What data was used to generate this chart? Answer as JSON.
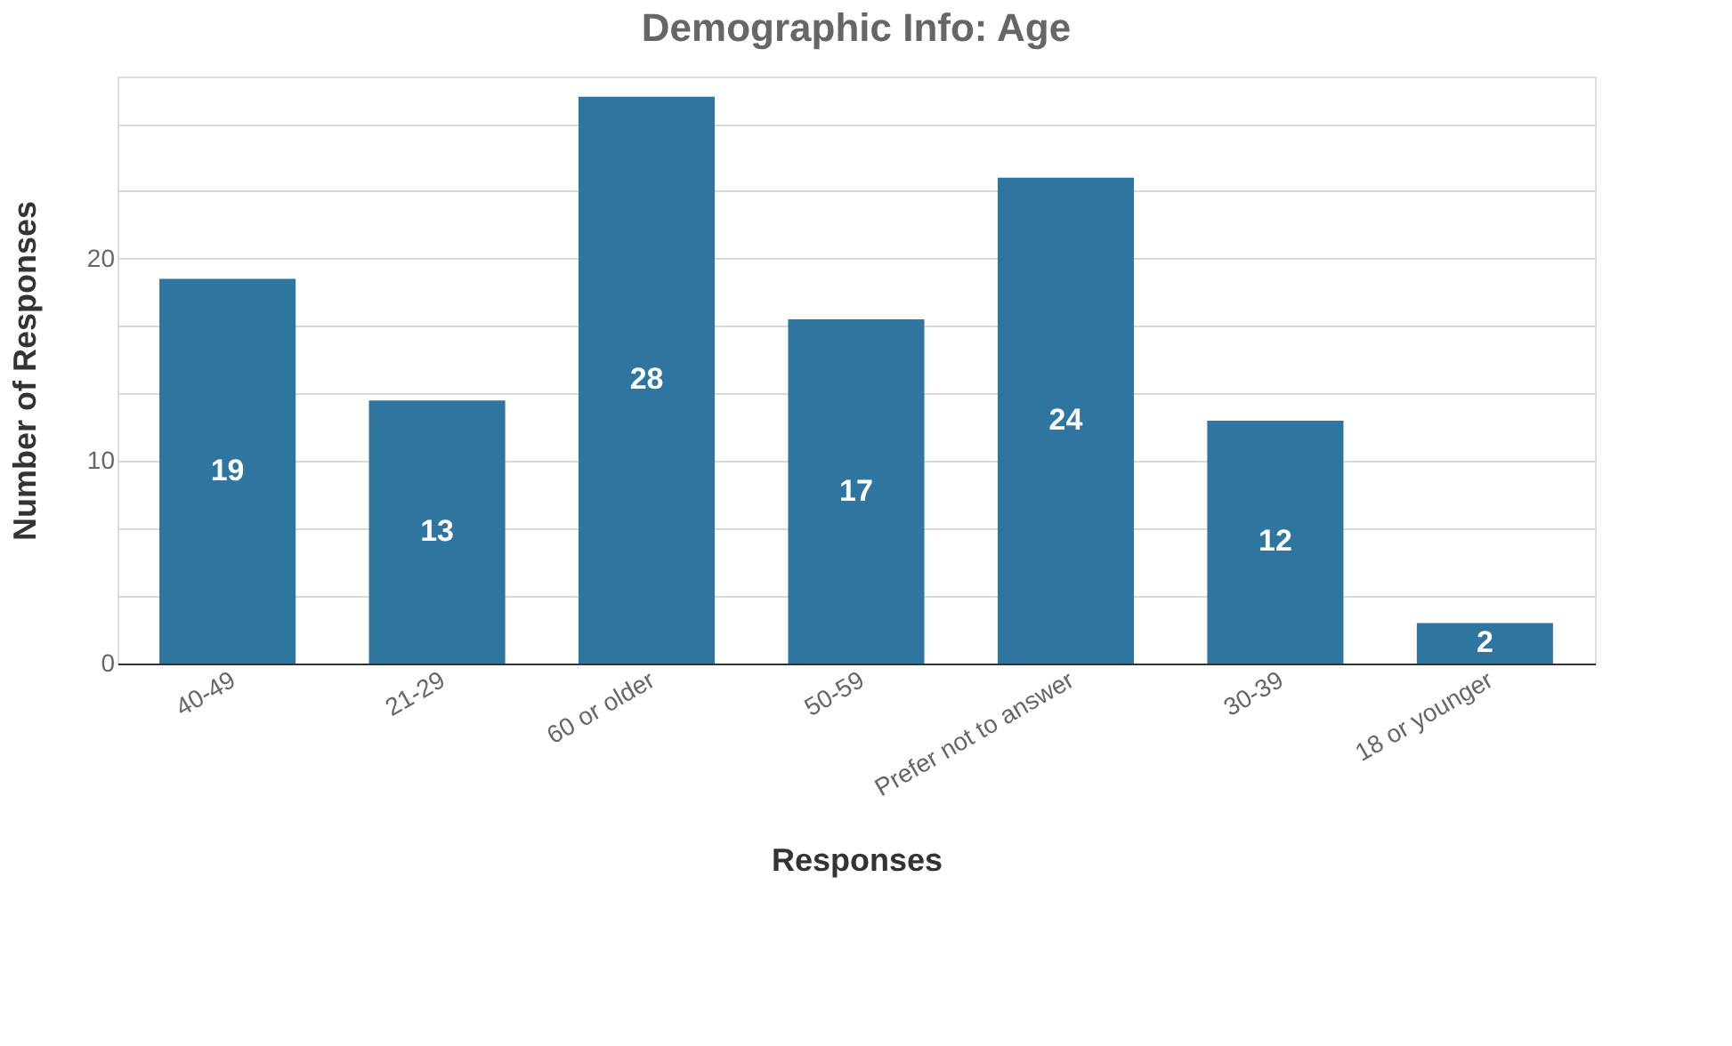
{
  "chart_data": {
    "type": "bar",
    "title": "Demographic Info: Age",
    "xlabel": "Responses",
    "ylabel": "Number of Responses",
    "categories": [
      "40-49",
      "21-29",
      "60 or older",
      "50-59",
      "Prefer not to answer",
      "30-39",
      "18 or younger"
    ],
    "values": [
      19,
      13,
      28,
      17,
      24,
      12,
      2
    ],
    "color": "#2e75a0",
    "ylim": [
      0,
      29
    ],
    "yticks": [
      0,
      {
        "value": 3.333,
        "label": null
      },
      {
        "value": 6.667,
        "label": null
      },
      10,
      {
        "value": 13.333,
        "label": null
      },
      {
        "value": 16.667,
        "label": null
      },
      20,
      {
        "value": 23.333,
        "label": null
      },
      {
        "value": 26.667,
        "label": null
      }
    ],
    "grid": "y",
    "data_labels": true
  }
}
